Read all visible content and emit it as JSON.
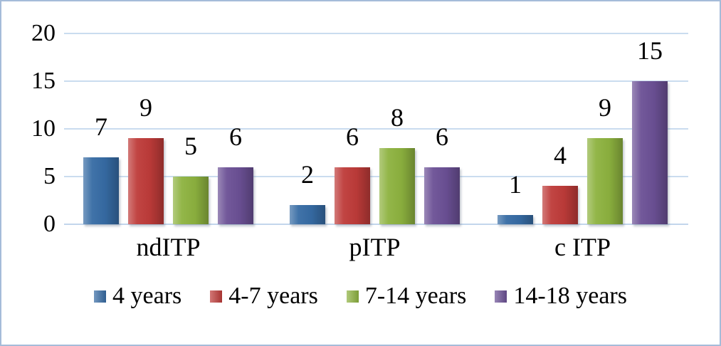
{
  "chart_data": {
    "type": "bar",
    "title": "",
    "xlabel": "",
    "ylabel": "",
    "categories": [
      "ndITP",
      "pITP",
      "c ITP"
    ],
    "series": [
      {
        "name": "4 years",
        "color": "#366ba4",
        "values": [
          7,
          2,
          1
        ]
      },
      {
        "name": "4-7 years",
        "color": "#be3b39",
        "values": [
          9,
          6,
          4
        ]
      },
      {
        "name": "7-14 years",
        "color": "#8db23f",
        "values": [
          5,
          8,
          9
        ]
      },
      {
        "name": "14-18 years",
        "color": "#6b5095",
        "values": [
          6,
          6,
          15
        ]
      }
    ],
    "ylim": [
      0,
      20
    ],
    "yticks": [
      0,
      5,
      10,
      15,
      20
    ],
    "grid": true,
    "data_labels": true,
    "legend_position": "bottom"
  },
  "colors": {
    "gridline": "#cadcef",
    "baseline": "#c3d6ec",
    "frame_border": "#a5bcd9",
    "background": "#ffffff",
    "text": "#000000"
  }
}
